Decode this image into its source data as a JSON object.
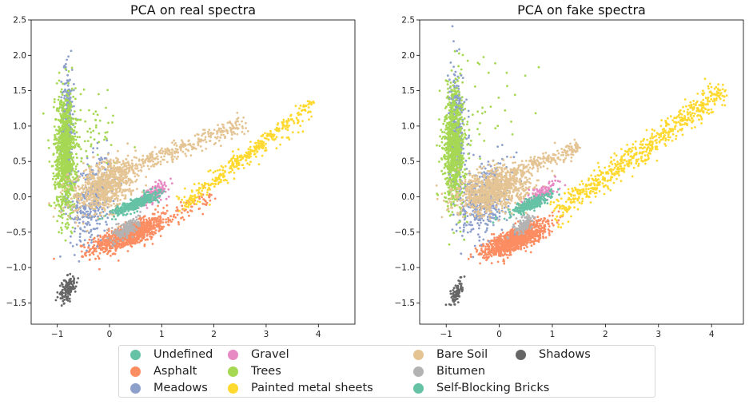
{
  "chart_data": [
    {
      "type": "scatter",
      "title": "PCA on real spectra",
      "xlim": [
        -1.5,
        4.7
      ],
      "ylim": [
        -1.8,
        2.5
      ],
      "xticks": [
        -1,
        0,
        1,
        2,
        3,
        4
      ],
      "yticks": [
        -1.5,
        -1.0,
        -0.5,
        0.0,
        0.5,
        1.0,
        1.5,
        2.0,
        2.5
      ],
      "xtick_labels": [
        "−1",
        "0",
        "1",
        "2",
        "3",
        "4"
      ],
      "ytick_labels": [
        "−1.5",
        "−1.0",
        "−0.5",
        "0.0",
        "0.5",
        "1.0",
        "1.5",
        "2.0",
        "2.5"
      ],
      "grid": false,
      "series": [
        {
          "name": "Asphalt",
          "color": "#fc8d62",
          "clusters": [
            {
              "count": 900,
              "cx": 0.35,
              "cy": -0.55,
              "sx": 0.35,
              "sy": 0.12,
              "rho": 0.75
            },
            {
              "count": 80,
              "line": [
                [
                  0.6,
                  -0.4
                ],
                [
                  2.0,
                  0.0
                ]
              ],
              "spread": 0.08
            }
          ]
        },
        {
          "name": "Meadows",
          "color": "#8da0cb",
          "clusters": [
            {
              "count": 350,
              "cx": -0.8,
              "cy": 0.9,
              "sx": 0.06,
              "sy": 0.45,
              "rho": 0
            },
            {
              "count": 350,
              "cx": -0.35,
              "cy": -0.05,
              "sx": 0.2,
              "sy": 0.3,
              "rho": 0.3
            }
          ]
        },
        {
          "name": "Trees",
          "color": "#a6d854",
          "clusters": [
            {
              "count": 900,
              "cx": -0.85,
              "cy": 0.6,
              "sx": 0.1,
              "sy": 0.42,
              "rho": 0
            },
            {
              "count": 60,
              "cx": -0.3,
              "cy": 0.9,
              "sx": 0.35,
              "sy": 0.35,
              "rho": 0
            }
          ]
        },
        {
          "name": "Painted metal sheets",
          "color": "#ffd92f",
          "clusters": [
            {
              "count": 220,
              "line": [
                [
                  1.5,
                  -0.1
                ],
                [
                  3.9,
                  1.35
                ]
              ],
              "spread": 0.04
            },
            {
              "count": 150,
              "line": [
                [
                  1.3,
                  -0.15
                ],
                [
                  3.8,
                  1.2
                ]
              ],
              "spread": 0.09
            },
            {
              "count": 30,
              "cx": 2.5,
              "cy": 0.55,
              "sx": 0.12,
              "sy": 0.05,
              "rho": 0.5
            }
          ]
        },
        {
          "name": "Bare Soil",
          "color": "#e5c494",
          "clusters": [
            {
              "count": 700,
              "cx": -0.1,
              "cy": 0.15,
              "sx": 0.3,
              "sy": 0.18,
              "rho": 0.3
            },
            {
              "count": 350,
              "line": [
                [
                  0.0,
                  0.3
                ],
                [
                  2.6,
                  1.05
                ]
              ],
              "spread": 0.07
            }
          ]
        },
        {
          "name": "Gravel",
          "color": "#e78ac3",
          "clusters": [
            {
              "count": 150,
              "cx": 0.85,
              "cy": 0.05,
              "sx": 0.15,
              "sy": 0.08,
              "rho": 0.7
            }
          ]
        },
        {
          "name": "Self-Blocking Bricks",
          "color": "#66c2a5",
          "clusters": [
            {
              "count": 350,
              "cx": 0.5,
              "cy": -0.1,
              "sx": 0.22,
              "sy": 0.08,
              "rho": 0.85
            }
          ]
        },
        {
          "name": "Bitumen",
          "color": "#b3b3b3",
          "clusters": [
            {
              "count": 180,
              "cx": 0.35,
              "cy": -0.45,
              "sx": 0.12,
              "sy": 0.08,
              "rho": 0.6
            }
          ]
        },
        {
          "name": "Shadows",
          "color": "#666666",
          "clusters": [
            {
              "count": 130,
              "cx": -0.8,
              "cy": -1.3,
              "sx": 0.08,
              "sy": 0.1,
              "rho": 0.5
            }
          ]
        }
      ]
    },
    {
      "type": "scatter",
      "title": "PCA on fake spectra",
      "xlim": [
        -1.5,
        4.6
      ],
      "ylim": [
        -1.8,
        2.5
      ],
      "xticks": [
        -1,
        0,
        1,
        2,
        3,
        4
      ],
      "yticks": [
        -1.5,
        -1.0,
        -0.5,
        0.0,
        0.5,
        1.0,
        1.5,
        2.0,
        2.5
      ],
      "xtick_labels": [
        "−1",
        "0",
        "1",
        "2",
        "3",
        "4"
      ],
      "ytick_labels": [
        "−1.5",
        "−1.0",
        "−0.5",
        "0.0",
        "0.5",
        "1.0",
        "1.5",
        "2.0",
        "2.5"
      ],
      "grid": false,
      "series": [
        {
          "name": "Asphalt",
          "color": "#fc8d62",
          "clusters": [
            {
              "count": 1000,
              "cx": 0.3,
              "cy": -0.6,
              "sx": 0.3,
              "sy": 0.12,
              "rho": 0.75
            }
          ]
        },
        {
          "name": "Meadows",
          "color": "#8da0cb",
          "clusters": [
            {
              "count": 350,
              "cx": -0.8,
              "cy": 0.9,
              "sx": 0.07,
              "sy": 0.45,
              "rho": 0
            },
            {
              "count": 450,
              "cx": -0.3,
              "cy": -0.05,
              "sx": 0.22,
              "sy": 0.25,
              "rho": 0.3
            }
          ]
        },
        {
          "name": "Trees",
          "color": "#a6d854",
          "clusters": [
            {
              "count": 800,
              "cx": -0.85,
              "cy": 0.7,
              "sx": 0.1,
              "sy": 0.42,
              "rho": 0
            },
            {
              "count": 40,
              "cx": -0.2,
              "cy": 1.2,
              "sx": 0.5,
              "sy": 0.45,
              "rho": 0
            }
          ]
        },
        {
          "name": "Painted metal sheets",
          "color": "#ffd92f",
          "clusters": [
            {
              "count": 650,
              "line": [
                [
                  1.1,
                  -0.2
                ],
                [
                  4.2,
                  1.5
                ]
              ],
              "spread": 0.09
            }
          ]
        },
        {
          "name": "Bare Soil",
          "color": "#e5c494",
          "clusters": [
            {
              "count": 900,
              "cx": -0.1,
              "cy": 0.1,
              "sx": 0.35,
              "sy": 0.15,
              "rho": 0.3
            },
            {
              "count": 200,
              "line": [
                [
                  0.1,
                  0.3
                ],
                [
                  1.5,
                  0.7
                ]
              ],
              "spread": 0.06
            }
          ]
        },
        {
          "name": "Gravel",
          "color": "#e78ac3",
          "clusters": [
            {
              "count": 120,
              "cx": 0.8,
              "cy": 0.05,
              "sx": 0.15,
              "sy": 0.08,
              "rho": 0.7
            }
          ]
        },
        {
          "name": "Self-Blocking Bricks",
          "color": "#66c2a5",
          "clusters": [
            {
              "count": 300,
              "cx": 0.6,
              "cy": -0.1,
              "sx": 0.18,
              "sy": 0.07,
              "rho": 0.85
            }
          ]
        },
        {
          "name": "Bitumen",
          "color": "#b3b3b3",
          "clusters": [
            {
              "count": 120,
              "cx": 0.45,
              "cy": -0.4,
              "sx": 0.1,
              "sy": 0.07,
              "rho": 0.6
            }
          ]
        },
        {
          "name": "Shadows",
          "color": "#666666",
          "clusters": [
            {
              "count": 90,
              "cx": -0.8,
              "cy": -1.35,
              "sx": 0.06,
              "sy": 0.08,
              "rho": 0.6
            }
          ]
        }
      ]
    }
  ],
  "legend": {
    "placement": "bottom-center",
    "items": [
      {
        "label": "Undefined",
        "color": "#66c2a5"
      },
      {
        "label": "Asphalt",
        "color": "#fc8d62"
      },
      {
        "label": "Meadows",
        "color": "#8da0cb"
      },
      {
        "label": "Gravel",
        "color": "#e78ac3"
      },
      {
        "label": "Trees",
        "color": "#a6d854"
      },
      {
        "label": "Painted metal sheets",
        "color": "#ffd92f"
      },
      {
        "label": "Bare Soil",
        "color": "#e5c494"
      },
      {
        "label": "Bitumen",
        "color": "#b3b3b3"
      },
      {
        "label": "Self-Blocking Bricks",
        "color": "#66c2a5"
      },
      {
        "label": "Shadows",
        "color": "#666666"
      }
    ]
  }
}
